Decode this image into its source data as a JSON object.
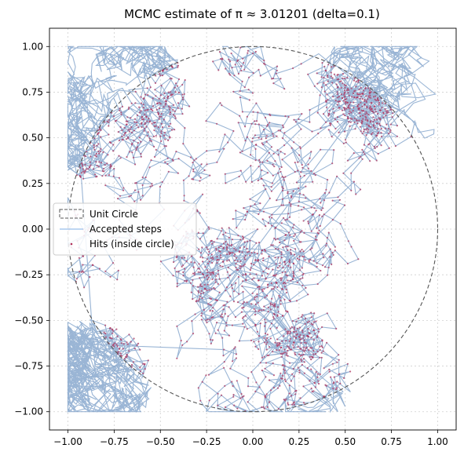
{
  "chart_data": {
    "type": "scatter",
    "title": "MCMC estimate of π ≈ 3.01201 (delta=0.1)",
    "xlabel": "",
    "ylabel": "",
    "xlim": [
      -1.1,
      1.1
    ],
    "ylim": [
      -1.1,
      1.1
    ],
    "xticks": [
      -1.0,
      -0.75,
      -0.5,
      -0.25,
      0.0,
      0.25,
      0.5,
      0.75,
      1.0
    ],
    "yticks": [
      -1.0,
      -0.75,
      -0.5,
      -0.25,
      0.0,
      0.25,
      0.5,
      0.75,
      1.0
    ],
    "xtick_labels": [
      "−1.00",
      "−0.75",
      "−0.50",
      "−0.25",
      "0.00",
      "0.25",
      "0.50",
      "0.75",
      "1.00"
    ],
    "ytick_labels": [
      "−1.00",
      "−0.75",
      "−0.50",
      "−0.25",
      "0.00",
      "0.25",
      "0.50",
      "0.75",
      "1.00"
    ],
    "grid": true,
    "legend_position": "center-left",
    "pi_estimate": 3.01201,
    "delta": 0.1,
    "series": [
      {
        "name": "Unit Circle",
        "kind": "circle",
        "center": [
          0,
          0
        ],
        "radius": 1,
        "color": "#555555",
        "style": "dashed"
      },
      {
        "name": "Accepted steps",
        "kind": "random-walk-path",
        "color": "#6f96c3",
        "alpha": 0.7
      },
      {
        "name": "Hits (inside circle)",
        "kind": "points",
        "color": "#b0305a"
      }
    ],
    "walk_regions": [
      {
        "center": [
          -0.85,
          0.75
        ],
        "radius": 0.2,
        "density": "high"
      },
      {
        "center": [
          -0.9,
          -0.85
        ],
        "radius": 0.15,
        "density": "high"
      },
      {
        "center": [
          -0.15,
          -0.7
        ],
        "radius": 0.3,
        "density": "high"
      },
      {
        "center": [
          0.7,
          0.75
        ],
        "radius": 0.2,
        "density": "medium"
      },
      {
        "center": [
          0.2,
          0.6
        ],
        "radius": 0.3,
        "density": "medium"
      },
      {
        "center": [
          0.0,
          0.0
        ],
        "radius": 0.95,
        "density": "medium"
      }
    ]
  }
}
